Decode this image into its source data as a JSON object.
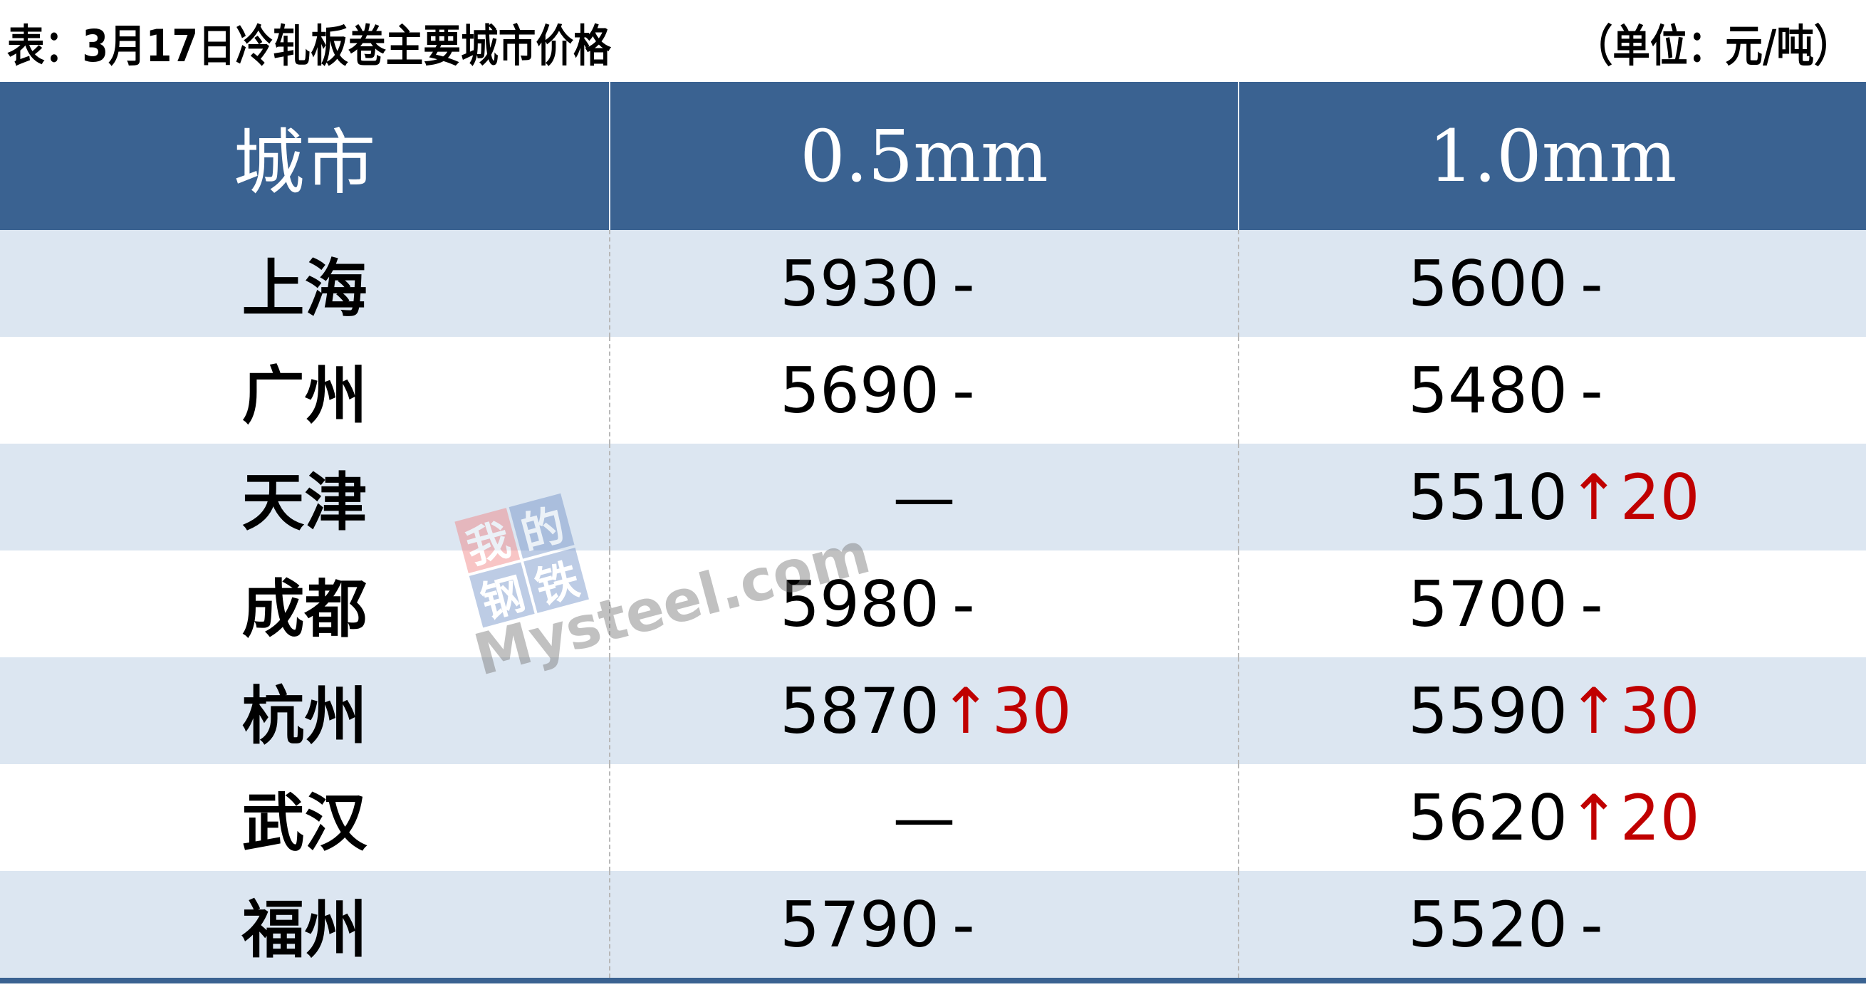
{
  "title": "表：3月17日冷轧板卷主要城市价格",
  "unit": "（单位：元/吨）",
  "columns": [
    "城市",
    "0.5mm",
    "1.0mm"
  ],
  "rows": [
    {
      "city": "上海",
      "p05": "5930",
      "c05": "-",
      "p10": "5600",
      "c10": "-"
    },
    {
      "city": "广州",
      "p05": "5690",
      "c05": "-",
      "p10": "5480",
      "c10": "-"
    },
    {
      "city": "天津",
      "p05": "—",
      "c05": "",
      "p10": "5510",
      "c10": "↑20"
    },
    {
      "city": "成都",
      "p05": "5980",
      "c05": "-",
      "p10": "5700",
      "c10": "-"
    },
    {
      "city": "杭州",
      "p05": "5870",
      "c05": "↑30",
      "p10": "5590",
      "c10": "↑30"
    },
    {
      "city": "武汉",
      "p05": "—",
      "c05": "",
      "p10": "5620",
      "c10": "↑20"
    },
    {
      "city": "福州",
      "p05": "5790",
      "c05": "-",
      "p10": "5520",
      "c10": "-"
    }
  ],
  "watermark": {
    "chars": [
      "我",
      "的",
      "钢",
      "铁"
    ],
    "text": "Mysteel.com"
  },
  "colors": {
    "header": "#3a6291",
    "alt_row": "#dce6f1",
    "up": "#c00000"
  }
}
